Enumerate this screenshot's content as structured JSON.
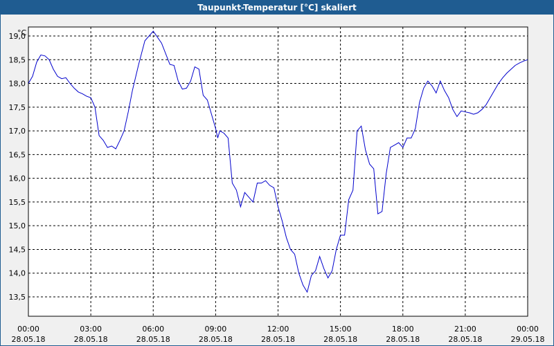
{
  "window": {
    "title": "Taupunkt-Temperatur [°C] skaliert"
  },
  "colors": {
    "titlebar": "#1f5c91",
    "line": "#0000cc",
    "grid": "#000000",
    "background": "#ffffff"
  },
  "chart_data": {
    "type": "line",
    "title": "Taupunkt-Temperatur [°C] skaliert",
    "ylabel": "°C",
    "xlabel": "",
    "ylim": [
      13.3,
      19.5
    ],
    "xlim_hours": [
      0,
      24
    ],
    "grid": true,
    "y_ticks": [
      {
        "value": 19.0,
        "label": "19,0"
      },
      {
        "value": 18.5,
        "label": "18,5"
      },
      {
        "value": 18.0,
        "label": "18,0"
      },
      {
        "value": 17.5,
        "label": "17,5"
      },
      {
        "value": 17.0,
        "label": "17,0"
      },
      {
        "value": 16.5,
        "label": "16,5"
      },
      {
        "value": 16.0,
        "label": "16,0"
      },
      {
        "value": 15.5,
        "label": "15,5"
      },
      {
        "value": 15.0,
        "label": "15,0"
      },
      {
        "value": 14.5,
        "label": "14,5"
      },
      {
        "value": 14.0,
        "label": "14,0"
      },
      {
        "value": 13.5,
        "label": "13,5"
      }
    ],
    "x_ticks": [
      {
        "hour": 0,
        "time": "00:00",
        "date": "28.05.18"
      },
      {
        "hour": 3,
        "time": "03:00",
        "date": "28.05.18"
      },
      {
        "hour": 6,
        "time": "06:00",
        "date": "28.05.18"
      },
      {
        "hour": 9,
        "time": "09:00",
        "date": "28.05.18"
      },
      {
        "hour": 12,
        "time": "12:00",
        "date": "28.05.18"
      },
      {
        "hour": 15,
        "time": "15:00",
        "date": "28.05.18"
      },
      {
        "hour": 18,
        "time": "18:00",
        "date": "28.05.18"
      },
      {
        "hour": 21,
        "time": "21:00",
        "date": "28.05.18"
      },
      {
        "hour": 24,
        "time": "00:00",
        "date": "29.05.18"
      }
    ],
    "series": [
      {
        "x": [
          0,
          0.2,
          0.4,
          0.6,
          0.8,
          1.0,
          1.2,
          1.4,
          1.6,
          1.8,
          2.0,
          2.2,
          2.4,
          2.6,
          2.8,
          3.0,
          3.2,
          3.4,
          3.6,
          3.8,
          4.0,
          4.2,
          4.4,
          4.6,
          4.8,
          5.0,
          5.3,
          5.6,
          6.0,
          6.4,
          6.8,
          7.0,
          7.2,
          7.4,
          7.6,
          7.8,
          8.0,
          8.2,
          8.4,
          8.6,
          8.8,
          9.0,
          9.1,
          9.2,
          9.4,
          9.6,
          9.8,
          10.0,
          10.2,
          10.4,
          10.6,
          10.8,
          11.0,
          11.2,
          11.4,
          11.6,
          11.8,
          12.0,
          12.2,
          12.4,
          12.6,
          12.8,
          13.0,
          13.2,
          13.4,
          13.6,
          13.8,
          14.0,
          14.2,
          14.4,
          14.6,
          14.8,
          15.0,
          15.2,
          15.4,
          15.6,
          15.8,
          16.0,
          16.2,
          16.4,
          16.6,
          16.8,
          17.0,
          17.2,
          17.4,
          17.6,
          17.8,
          18.0,
          18.2,
          18.4,
          18.6,
          18.8,
          19.0,
          19.2,
          19.4,
          19.6,
          19.8,
          20.0,
          20.2,
          20.4,
          20.6,
          20.8,
          21.0,
          21.2,
          21.4,
          21.6,
          21.8,
          22.0,
          22.2,
          22.4,
          22.6,
          22.8,
          23.0,
          23.2,
          23.4,
          23.6,
          23.8,
          24.0
        ],
        "y": [
          18.0,
          18.15,
          18.45,
          18.6,
          18.58,
          18.5,
          18.3,
          18.15,
          18.1,
          18.12,
          18.0,
          17.9,
          17.82,
          17.78,
          17.73,
          17.7,
          17.5,
          16.9,
          16.8,
          16.65,
          16.68,
          16.62,
          16.8,
          17.0,
          17.4,
          17.85,
          18.4,
          18.9,
          19.1,
          18.85,
          18.4,
          18.38,
          18.05,
          17.88,
          17.9,
          18.05,
          18.35,
          18.3,
          17.75,
          17.65,
          17.35,
          17.05,
          16.85,
          17.0,
          16.95,
          16.85,
          15.9,
          15.75,
          15.4,
          15.7,
          15.6,
          15.5,
          15.9,
          15.9,
          15.95,
          15.85,
          15.8,
          15.4,
          15.1,
          14.75,
          14.5,
          14.4,
          14.0,
          13.75,
          13.6,
          13.95,
          14.05,
          14.35,
          14.1,
          13.9,
          14.05,
          14.5,
          14.8,
          14.8,
          15.55,
          15.75,
          17.0,
          17.1,
          16.6,
          16.3,
          16.2,
          15.25,
          15.3,
          16.1,
          16.65,
          16.7,
          16.75,
          16.65,
          16.85,
          16.85,
          17.05,
          17.6,
          17.9,
          18.05,
          17.95,
          17.8,
          18.05,
          17.85,
          17.7,
          17.45,
          17.3,
          17.42,
          17.4,
          17.38,
          17.35,
          17.38,
          17.45,
          17.55,
          17.7,
          17.85,
          18.0,
          18.12,
          18.22,
          18.3,
          18.38,
          18.43,
          18.47,
          18.5
        ]
      }
    ]
  }
}
